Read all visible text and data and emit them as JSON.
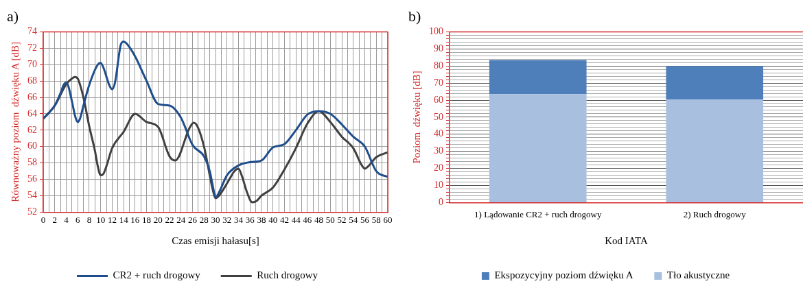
{
  "chart_data": [
    {
      "type": "line",
      "title": "a)",
      "xlabel": "Czas emisji hałasu[s]",
      "ylabel": "Równoważny poziom  dźwięku A [dB]",
      "xlim": [
        0,
        60
      ],
      "ylim": [
        52,
        74
      ],
      "xticks": [
        0,
        {
          "value": 1,
          "label": null
        },
        2,
        {
          "value": 3,
          "label": null
        },
        4,
        {
          "value": 5,
          "label": null
        },
        6,
        {
          "value": 7,
          "label": null
        },
        8,
        {
          "value": 9,
          "label": null
        },
        10,
        {
          "value": 11,
          "label": null
        },
        12,
        {
          "value": 13,
          "label": null
        },
        14,
        {
          "value": 15,
          "label": null
        },
        16,
        {
          "value": 17,
          "label": null
        },
        18,
        {
          "value": 19,
          "label": null
        },
        20,
        {
          "value": 21,
          "label": null
        },
        22,
        {
          "value": 23,
          "label": null
        },
        24,
        {
          "value": 25,
          "label": null
        },
        26,
        {
          "value": 27,
          "label": null
        },
        28,
        {
          "value": 29,
          "label": null
        },
        30,
        {
          "value": 31,
          "label": null
        },
        32,
        {
          "value": 33,
          "label": null
        },
        34,
        {
          "value": 35,
          "label": null
        },
        36,
        {
          "value": 37,
          "label": null
        },
        38,
        {
          "value": 39,
          "label": null
        },
        40,
        {
          "value": 41,
          "label": null
        },
        42,
        {
          "value": 43,
          "label": null
        },
        44,
        {
          "value": 45,
          "label": null
        },
        46,
        {
          "value": 47,
          "label": null
        },
        48,
        {
          "value": 49,
          "label": null
        },
        50,
        {
          "value": 51,
          "label": null
        },
        52,
        {
          "value": 53,
          "label": null
        },
        54,
        {
          "value": 55,
          "label": null
        },
        56,
        {
          "value": 57,
          "label": null
        },
        58,
        {
          "value": 59,
          "label": null
        },
        60
      ],
      "yticks": [
        52,
        54,
        56,
        58,
        60,
        62,
        64,
        66,
        68,
        70,
        72,
        74
      ],
      "grid": true,
      "legend": "bottom",
      "marker": "none",
      "line_style": "solid",
      "series": [
        {
          "name": "CR2 + ruch drogowy",
          "color": "#1f4e8c",
          "x": [
            0,
            2,
            3,
            3.6,
            4,
            4.4,
            5,
            5.6,
            6,
            6.4,
            7,
            8,
            9.5,
            10,
            10.5,
            11.5,
            12,
            12.5,
            13.5,
            14,
            14.6,
            16,
            18,
            20,
            22,
            24,
            26,
            28,
            29,
            29.5,
            30,
            30.6,
            32,
            34,
            36,
            38,
            40,
            42,
            44,
            46,
            48,
            50,
            52,
            54,
            56,
            58,
            60
          ],
          "values": [
            63.4,
            65,
            66.5,
            67.6,
            67.8,
            67.3,
            65.5,
            63.6,
            63,
            63.4,
            65,
            67.5,
            70,
            70.2,
            69.6,
            67.5,
            67,
            67.8,
            72.4,
            72.8,
            72.5,
            71,
            68,
            65.2,
            65,
            63.5,
            60.2,
            58.8,
            57,
            55.3,
            53.8,
            54.4,
            56.5,
            57.7,
            58.1,
            58.3,
            59.9,
            60.3,
            62,
            63.9,
            64.3,
            64,
            62.7,
            61.2,
            60,
            57,
            56.3
          ]
        },
        {
          "name": "Ruch drogowy",
          "color": "#404040",
          "x": [
            0,
            2,
            4,
            5,
            5.5,
            6,
            7,
            8,
            9,
            9.5,
            10,
            10.5,
            11,
            12,
            14,
            16,
            18,
            20,
            22,
            23,
            25.5,
            26.2,
            26.9,
            28,
            29.5,
            30,
            30.6,
            32,
            33.3,
            34,
            34.6,
            35.5,
            36.4,
            37.2,
            38,
            40,
            42,
            44,
            46,
            48,
            50,
            52,
            54,
            55.4,
            56,
            56.6,
            58,
            60
          ],
          "values": [
            63.4,
            65,
            67.6,
            68.3,
            68.5,
            68.3,
            66,
            62.5,
            59.5,
            57.6,
            56.5,
            56.7,
            57.6,
            59.8,
            61.8,
            64,
            63,
            62.4,
            58.8,
            58.3,
            62.3,
            62.9,
            62.4,
            60,
            54.8,
            53.7,
            54.0,
            55.5,
            57.0,
            57.3,
            56.4,
            54.4,
            53.2,
            53.4,
            54,
            55,
            57.2,
            59.8,
            62.8,
            64.3,
            63,
            61.2,
            59.8,
            57.8,
            57.3,
            57.6,
            58.7,
            59.3
          ]
        }
      ]
    },
    {
      "type": "bar",
      "title": "b)",
      "xlabel": "Kod IATA",
      "ylabel": "Poziom  dźwięku [dB]",
      "stacked": true,
      "categories": [
        "1) Lądowanie CR2 + ruch drogowy",
        "2) Ruch drogowy"
      ],
      "ylim": [
        0,
        100
      ],
      "yticks": [
        0,
        {
          "value": 2,
          "label": null
        },
        {
          "value": 4,
          "label": null
        },
        {
          "value": 6,
          "label": null
        },
        {
          "value": 8,
          "label": null
        },
        10,
        {
          "value": 12,
          "label": null
        },
        {
          "value": 14,
          "label": null
        },
        {
          "value": 16,
          "label": null
        },
        {
          "value": 18,
          "label": null
        },
        20,
        {
          "value": 22,
          "label": null
        },
        {
          "value": 24,
          "label": null
        },
        {
          "value": 26,
          "label": null
        },
        {
          "value": 28,
          "label": null
        },
        30,
        {
          "value": 32,
          "label": null
        },
        {
          "value": 34,
          "label": null
        },
        {
          "value": 36,
          "label": null
        },
        {
          "value": 38,
          "label": null
        },
        40,
        {
          "value": 42,
          "label": null
        },
        {
          "value": 44,
          "label": null
        },
        {
          "value": 46,
          "label": null
        },
        {
          "value": 48,
          "label": null
        },
        50,
        {
          "value": 52,
          "label": null
        },
        {
          "value": 54,
          "label": null
        },
        {
          "value": 56,
          "label": null
        },
        {
          "value": 58,
          "label": null
        },
        60,
        {
          "value": 62,
          "label": null
        },
        {
          "value": 64,
          "label": null
        },
        {
          "value": 66,
          "label": null
        },
        {
          "value": 68,
          "label": null
        },
        70,
        {
          "value": 72,
          "label": null
        },
        {
          "value": 74,
          "label": null
        },
        {
          "value": 76,
          "label": null
        },
        {
          "value": 78,
          "label": null
        },
        80,
        {
          "value": 82,
          "label": null
        },
        {
          "value": 84,
          "label": null
        },
        {
          "value": 86,
          "label": null
        },
        {
          "value": 88,
          "label": null
        },
        90,
        {
          "value": 92,
          "label": null
        },
        {
          "value": 94,
          "label": null
        },
        {
          "value": 96,
          "label": null
        },
        {
          "value": 98,
          "label": null
        },
        100
      ],
      "grid": "y",
      "legend": "bottom",
      "series": [
        {
          "name": "Tło akustyczne",
          "color": "#a9bfdf",
          "values": [
            63.5,
            60.3
          ]
        },
        {
          "name": "Ekspozycyjny poziom dźwięku A",
          "color": "#4f7fba",
          "values": [
            20,
            19.7
          ]
        }
      ]
    }
  ]
}
